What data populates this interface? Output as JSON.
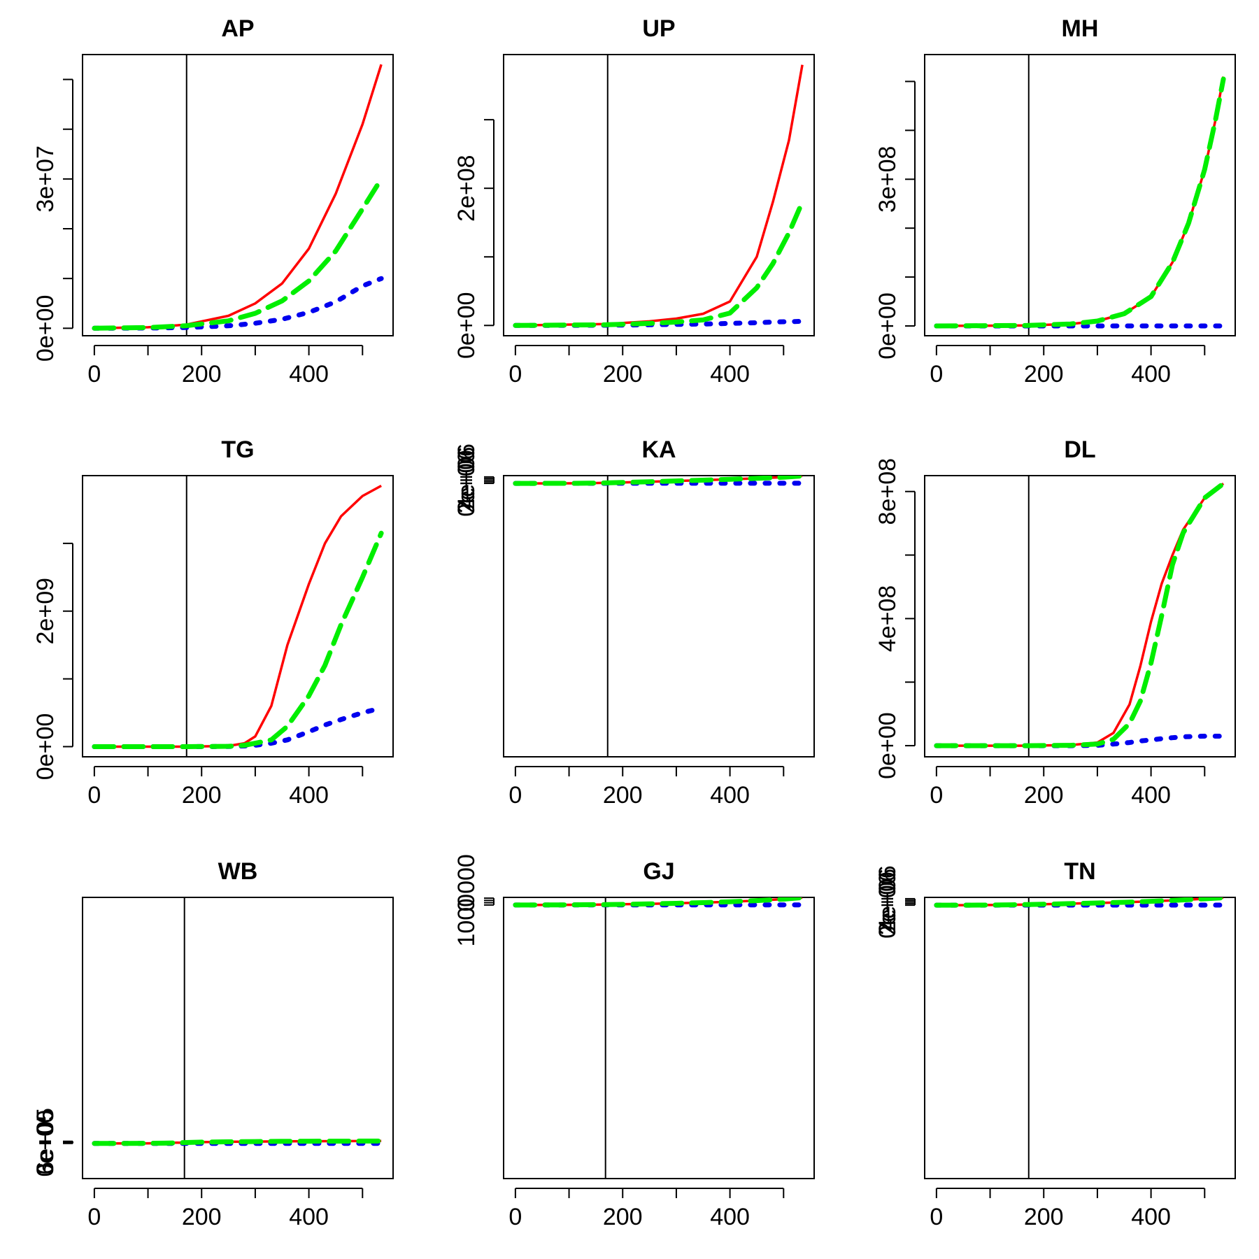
{
  "chart_data": [
    {
      "type": "line",
      "title": "AP",
      "x": [
        0,
        100,
        170,
        250,
        300,
        350,
        400,
        450,
        500,
        535
      ],
      "xticks": [
        0,
        200,
        400
      ],
      "xtick_minor": [
        0,
        100,
        200,
        300,
        400,
        500
      ],
      "xlim": [
        -22,
        557
      ],
      "ylim": [
        -1500000,
        55000000
      ],
      "yticks": [
        0,
        10000000,
        20000000,
        30000000,
        40000000,
        50000000
      ],
      "ytick_labels": [
        "0e+00",
        "",
        "",
        "3e+07",
        "",
        ""
      ],
      "vline": 172,
      "series": [
        {
          "name": "red",
          "style": "solid",
          "color": "#ff0000",
          "values": [
            0,
            200000,
            700000,
            2500000,
            5000000,
            9000000,
            16000000,
            27000000,
            41000000,
            53000000
          ]
        },
        {
          "name": "green",
          "style": "dashed",
          "color": "#00ee00",
          "values": [
            0,
            150000,
            500000,
            1500000,
            3000000,
            5500000,
            9500000,
            15500000,
            24000000,
            30000000
          ]
        },
        {
          "name": "blue",
          "style": "dotted",
          "color": "#0000ee",
          "values": [
            0,
            50000,
            150000,
            500000,
            1000000,
            1800000,
            3200000,
            5300000,
            8500000,
            10000000
          ]
        }
      ]
    },
    {
      "type": "line",
      "title": "UP",
      "x": [
        0,
        170,
        250,
        300,
        350,
        400,
        450,
        480,
        510,
        535
      ],
      "xticks": [
        0,
        200,
        400
      ],
      "xtick_minor": [
        0,
        100,
        200,
        300,
        400,
        500
      ],
      "xlim": [
        -22,
        557
      ],
      "ylim": [
        -15000000,
        395000000
      ],
      "yticks": [
        0,
        100000000,
        200000000,
        300000000
      ],
      "ytick_labels": [
        "0e+00",
        "",
        "2e+08",
        ""
      ],
      "vline": 172,
      "series": [
        {
          "name": "red",
          "style": "solid",
          "color": "#ff0000",
          "values": [
            0,
            2000000,
            6000000,
            10000000,
            17000000,
            35000000,
            100000000,
            180000000,
            270000000,
            380000000
          ]
        },
        {
          "name": "green",
          "style": "dashed",
          "color": "#00ee00",
          "values": [
            0,
            1000000,
            3000000,
            5000000,
            8000000,
            18000000,
            55000000,
            90000000,
            135000000,
            180000000
          ]
        },
        {
          "name": "blue",
          "style": "dotted",
          "color": "#0000ee",
          "values": [
            0,
            300000,
            1000000,
            1500000,
            2000000,
            3000000,
            4000000,
            5000000,
            5500000,
            6000000
          ]
        }
      ]
    },
    {
      "type": "line",
      "title": "MH",
      "x": [
        0,
        170,
        250,
        300,
        350,
        400,
        440,
        470,
        500,
        520,
        535
      ],
      "xticks": [
        0,
        200,
        400
      ],
      "xtick_minor": [
        0,
        100,
        200,
        300,
        400,
        500
      ],
      "xlim": [
        -22,
        557
      ],
      "ylim": [
        -20000000,
        555000000
      ],
      "yticks": [
        0,
        100000000,
        200000000,
        300000000,
        400000000,
        500000000
      ],
      "ytick_labels": [
        "0e+00",
        "",
        "",
        "3e+08",
        "",
        ""
      ],
      "vline": 172,
      "series": [
        {
          "name": "red",
          "style": "solid",
          "color": "#ff0000",
          "values": [
            0,
            1000000,
            4000000,
            10000000,
            25000000,
            60000000,
            130000000,
            210000000,
            320000000,
            420000000,
            510000000
          ]
        },
        {
          "name": "green",
          "style": "dashed",
          "color": "#00ee00",
          "values": [
            0,
            1000000,
            4000000,
            10000000,
            25000000,
            60000000,
            130000000,
            210000000,
            320000000,
            420000000,
            505000000
          ]
        },
        {
          "name": "blue",
          "style": "dotted",
          "color": "#0000ee",
          "values": [
            0,
            0,
            0,
            0,
            0,
            0,
            0,
            0,
            0,
            0,
            0
          ]
        }
      ]
    },
    {
      "type": "line",
      "title": "TG",
      "x": [
        0,
        170,
        250,
        280,
        300,
        330,
        360,
        400,
        430,
        460,
        500,
        535
      ],
      "xticks": [
        0,
        200,
        400
      ],
      "xtick_minor": [
        0,
        100,
        200,
        300,
        400,
        500
      ],
      "xlim": [
        -22,
        557
      ],
      "ylim": [
        -150000000,
        4000000000
      ],
      "yticks": [
        0,
        1000000000,
        2000000000,
        3000000000
      ],
      "ytick_labels": [
        "0e+00",
        "",
        "2e+09",
        ""
      ],
      "vline": 172,
      "series": [
        {
          "name": "red",
          "style": "solid",
          "color": "#ff0000",
          "values": [
            0,
            0,
            10000000,
            50000000,
            150000000,
            600000000,
            1500000000,
            2400000000,
            3000000000,
            3400000000,
            3700000000,
            3850000000
          ]
        },
        {
          "name": "green",
          "style": "dashed",
          "color": "#00ee00",
          "values": [
            0,
            0,
            5000000,
            20000000,
            50000000,
            100000000,
            300000000,
            750000000,
            1200000000,
            1800000000,
            2500000000,
            3150000000
          ]
        },
        {
          "name": "blue",
          "style": "dotted",
          "color": "#0000ee",
          "values": [
            0,
            0,
            3000000,
            10000000,
            20000000,
            50000000,
            100000000,
            220000000,
            320000000,
            400000000,
            500000000,
            570000000
          ]
        }
      ]
    },
    {
      "type": "line",
      "title": "KA",
      "x": [
        0,
        100,
        140,
        170,
        200,
        250,
        300,
        350,
        400,
        450,
        500,
        535
      ],
      "xticks": [
        0,
        200,
        400
      ],
      "xtick_minor": [
        0,
        100,
        200,
        300,
        400,
        500
      ],
      "xlim": [
        -22,
        557
      ],
      "ylim": [
        -170000000,
        4810000
      ],
      "yticks": [
        0,
        1000000,
        2000000,
        3000000,
        4000000
      ],
      "ytick_labels": [
        "0e+00",
        "",
        "2e+06",
        "",
        "4e+06"
      ],
      "vline": 172,
      "series": [
        {
          "name": "red",
          "style": "solid",
          "color": "#ff0000",
          "values": [
            0,
            40000,
            150000,
            330000,
            560000,
            1000000,
            1500000,
            2000000,
            2550000,
            3100000,
            3800000,
            4620000
          ]
        },
        {
          "name": "green",
          "style": "dashed",
          "color": "#00ee00",
          "values": [
            0,
            30000,
            130000,
            300000,
            560000,
            1000000,
            1500000,
            2000000,
            2550000,
            3100000,
            3800000,
            4580000
          ]
        },
        {
          "name": "blue",
          "style": "dotted",
          "color": "#0000ee",
          "values": [
            0,
            10000,
            30000,
            40000,
            50000,
            55000,
            60000,
            60000,
            60000,
            60000,
            60000,
            60000
          ]
        }
      ]
    },
    {
      "type": "line",
      "title": "DL",
      "x": [
        0,
        170,
        250,
        300,
        330,
        360,
        380,
        400,
        420,
        440,
        460,
        500,
        535
      ],
      "xticks": [
        0,
        200,
        400
      ],
      "xtick_minor": [
        0,
        100,
        200,
        300,
        400,
        500
      ],
      "xlim": [
        -22,
        557
      ],
      "ylim": [
        -35000000,
        850000000
      ],
      "yticks": [
        0,
        200000000,
        400000000,
        600000000,
        800000000
      ],
      "ytick_labels": [
        "0e+00",
        "",
        "4e+08",
        "",
        "8e+08"
      ],
      "vline": 172,
      "series": [
        {
          "name": "red",
          "style": "solid",
          "color": "#ff0000",
          "values": [
            0,
            0,
            2000000,
            10000000,
            40000000,
            130000000,
            250000000,
            390000000,
            510000000,
            600000000,
            680000000,
            780000000,
            825000000
          ]
        },
        {
          "name": "green",
          "style": "dashed",
          "color": "#00ee00",
          "values": [
            0,
            0,
            1000000,
            5000000,
            20000000,
            70000000,
            140000000,
            260000000,
            410000000,
            570000000,
            670000000,
            780000000,
            825000000
          ]
        },
        {
          "name": "blue",
          "style": "dotted",
          "color": "#0000ee",
          "values": [
            0,
            0,
            0,
            1000000,
            5000000,
            10000000,
            15000000,
            18000000,
            22000000,
            25000000,
            28000000,
            30000000,
            30000000
          ]
        }
      ]
    },
    {
      "type": "line",
      "title": "WB",
      "x": [
        0,
        50,
        100,
        130,
        150,
        170,
        200,
        250,
        300,
        350,
        400,
        450,
        500,
        535
      ],
      "xticks": [
        0,
        200,
        400
      ],
      "xtick_minor": [
        0,
        100,
        200,
        300,
        400,
        500
      ],
      "xlim": [
        -22,
        557
      ],
      "ylim": [
        -10000000,
        70000000
      ],
      "yticks": [
        0,
        100000,
        200000,
        300000,
        400000,
        500000,
        600000
      ],
      "ytick_labels": [
        "0e+00",
        "",
        "",
        "3e+05",
        "",
        "",
        "6e+05"
      ],
      "vline": 168,
      "series": [
        {
          "name": "red",
          "style": "solid",
          "color": "#ff0000",
          "values": [
            0,
            5000,
            30000,
            80000,
            180000,
            270000,
            370000,
            460000,
            530000,
            580000,
            620000,
            650000,
            675000,
            690000
          ]
        },
        {
          "name": "green",
          "style": "dashed",
          "color": "#00ee00",
          "values": [
            0,
            5000,
            25000,
            60000,
            150000,
            250000,
            360000,
            460000,
            530000,
            580000,
            620000,
            650000,
            675000,
            690000
          ]
        },
        {
          "name": "blue",
          "style": "dotted",
          "color": "#0000ee",
          "values": [
            0,
            2000,
            5000,
            6000,
            7000,
            8000,
            8000,
            8000,
            8000,
            8000,
            8000,
            8000,
            8000,
            8000
          ]
        }
      ]
    },
    {
      "type": "line",
      "title": "GJ",
      "x": [
        0,
        50,
        100,
        170,
        200,
        250,
        300,
        350,
        400,
        450,
        500,
        535
      ],
      "xticks": [
        0,
        200,
        400
      ],
      "xtick_minor": [
        0,
        100,
        200,
        300,
        400,
        500
      ],
      "xlim": [
        -22,
        557
      ],
      "ylim": [
        -60000000,
        1670000
      ],
      "yticks": [
        0,
        500000,
        1000000,
        1500000
      ],
      "ytick_labels": [
        "0",
        "",
        "1000000",
        ""
      ],
      "vline": 168,
      "series": [
        {
          "name": "red",
          "style": "solid",
          "color": "#ff0000",
          "values": [
            0,
            15000,
            45000,
            110000,
            160000,
            250000,
            380000,
            530000,
            720000,
            960000,
            1290000,
            1640000
          ]
        },
        {
          "name": "green",
          "style": "dashed",
          "color": "#00ee00",
          "values": [
            0,
            10000,
            35000,
            90000,
            140000,
            240000,
            370000,
            520000,
            715000,
            960000,
            1280000,
            1640000
          ]
        },
        {
          "name": "blue",
          "style": "dotted",
          "color": "#0000ee",
          "values": [
            0,
            3000,
            8000,
            15000,
            18000,
            22000,
            24000,
            25000,
            25000,
            25000,
            25000,
            25000
          ]
        }
      ]
    },
    {
      "type": "line",
      "title": "TN",
      "x": [
        0,
        60,
        100,
        140,
        170,
        200,
        250,
        300,
        350,
        400,
        450,
        500,
        535
      ],
      "xticks": [
        0,
        200,
        400
      ],
      "xtick_minor": [
        0,
        100,
        200,
        300,
        400,
        500
      ],
      "xlim": [
        -22,
        557
      ],
      "ylim": [
        -170000000,
        4830000
      ],
      "yticks": [
        0,
        1000000,
        2000000,
        3000000,
        4000000
      ],
      "ytick_labels": [
        "0e+00",
        "",
        "2e+06",
        "",
        "4e+06"
      ],
      "vline": 172,
      "series": [
        {
          "name": "red",
          "style": "solid",
          "color": "#ff0000",
          "values": [
            0,
            20000,
            80000,
            220000,
            400000,
            580000,
            950000,
            1350000,
            1800000,
            2400000,
            3100000,
            3950000,
            4650000
          ]
        },
        {
          "name": "green",
          "style": "dashed",
          "color": "#00ee00",
          "values": [
            0,
            15000,
            70000,
            200000,
            380000,
            560000,
            940000,
            1350000,
            1800000,
            2400000,
            3100000,
            3950000,
            4620000
          ]
        },
        {
          "name": "blue",
          "style": "dotted",
          "color": "#0000ee",
          "values": [
            0,
            5000,
            15000,
            25000,
            30000,
            32000,
            32000,
            32000,
            32000,
            32000,
            32000,
            32000,
            32000
          ]
        }
      ]
    }
  ]
}
